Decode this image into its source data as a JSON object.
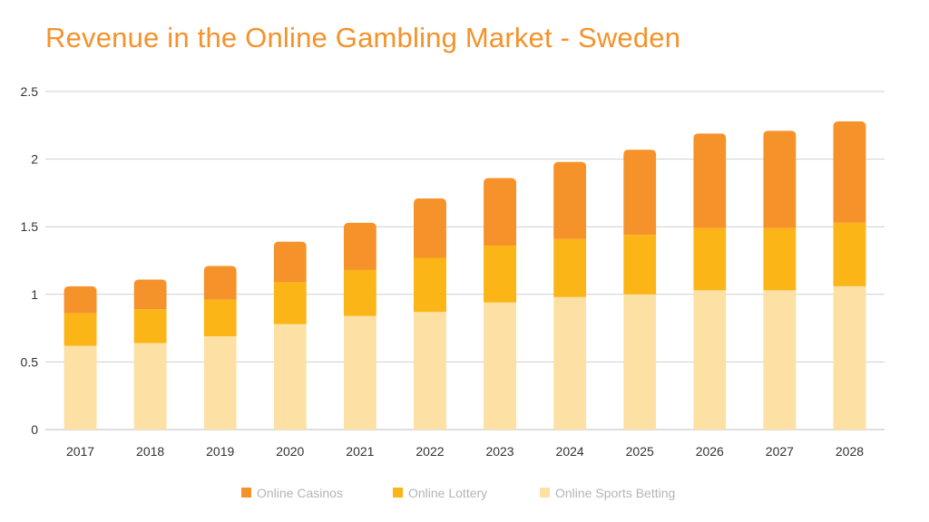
{
  "chart_data": {
    "type": "bar",
    "stacked": true,
    "title": "Revenue in the Online Gambling Market - Sweden",
    "categories": [
      "2017",
      "2018",
      "2019",
      "2020",
      "2021",
      "2022",
      "2023",
      "2024",
      "2025",
      "2026",
      "2027",
      "2028"
    ],
    "series": [
      {
        "name": "Online Sports Betting",
        "color": "#fde0a3",
        "values": [
          0.62,
          0.64,
          0.69,
          0.78,
          0.84,
          0.87,
          0.94,
          0.98,
          1.0,
          1.03,
          1.03,
          1.06
        ]
      },
      {
        "name": "Online Lottery",
        "color": "#fbb516",
        "values": [
          0.24,
          0.25,
          0.27,
          0.31,
          0.34,
          0.4,
          0.42,
          0.43,
          0.44,
          0.46,
          0.46,
          0.47
        ]
      },
      {
        "name": "Online Casinos",
        "color": "#f5922a",
        "values": [
          0.2,
          0.22,
          0.25,
          0.3,
          0.35,
          0.44,
          0.5,
          0.57,
          0.63,
          0.7,
          0.72,
          0.75
        ]
      }
    ],
    "legend_order": [
      "Online Casinos",
      "Online Lottery",
      "Online Sports Betting"
    ],
    "ylim": [
      0,
      2.5
    ],
    "yticks": [
      "0",
      "0.5",
      "1",
      "1.5",
      "2",
      "2.5"
    ],
    "grid": true,
    "legend_position": "bottom"
  }
}
